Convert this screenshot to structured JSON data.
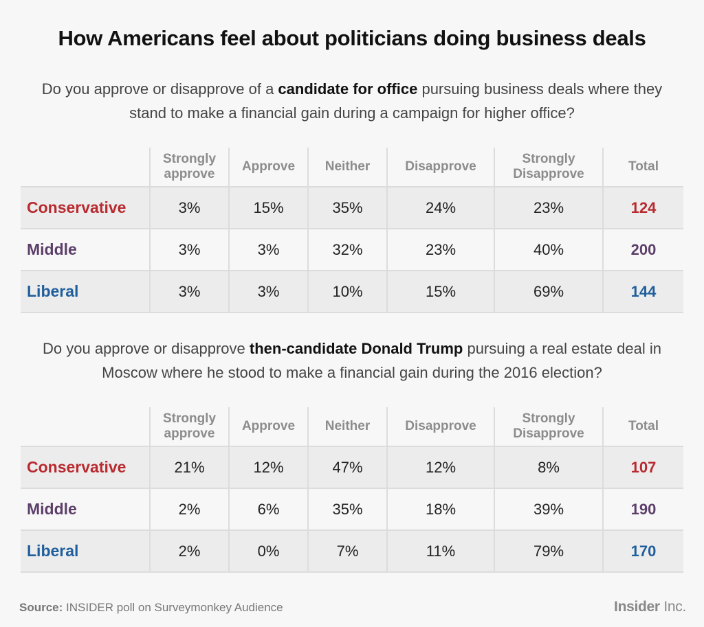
{
  "title": "How Americans feel about politicians doing business deals",
  "columns": [
    "",
    "Strongly approve",
    "Approve",
    "Neither",
    "Disapprove",
    "Strongly Disapprove",
    "Total"
  ],
  "colors": {
    "conservative": "#b82a2f",
    "middle": "#5c3f69",
    "liberal": "#1f5e9c"
  },
  "chart_data": [
    {
      "type": "table",
      "question": {
        "before": "Do you approve or disapprove of a ",
        "bold": "candidate for office",
        "after": " pursuing business deals where they stand to make a financial gain during a campaign for higher office?"
      },
      "columns": [
        "Strongly approve",
        "Approve",
        "Neither",
        "Disapprove",
        "Strongly Disapprove",
        "Total"
      ],
      "rows": [
        {
          "label": "Conservative",
          "key": "cons",
          "values": [
            "3%",
            "15%",
            "35%",
            "24%",
            "23%"
          ],
          "total": "124"
        },
        {
          "label": "Middle",
          "key": "mid",
          "values": [
            "3%",
            "3%",
            "32%",
            "23%",
            "40%"
          ],
          "total": "200"
        },
        {
          "label": "Liberal",
          "key": "lib",
          "values": [
            "3%",
            "3%",
            "10%",
            "15%",
            "69%"
          ],
          "total": "144"
        }
      ]
    },
    {
      "type": "table",
      "question": {
        "before": "Do you approve or disapprove ",
        "bold": "then-candidate Donald Trump",
        "after": " pursuing a real estate deal in Moscow where he stood to make a financial gain during the 2016 election?"
      },
      "columns": [
        "Strongly approve",
        "Approve",
        "Neither",
        "Disapprove",
        "Strongly Disapprove",
        "Total"
      ],
      "rows": [
        {
          "label": "Conservative",
          "key": "cons",
          "values": [
            "21%",
            "12%",
            "47%",
            "12%",
            "8%"
          ],
          "total": "107"
        },
        {
          "label": "Middle",
          "key": "mid",
          "values": [
            "2%",
            "6%",
            "35%",
            "18%",
            "39%"
          ],
          "total": "190"
        },
        {
          "label": "Liberal",
          "key": "lib",
          "values": [
            "2%",
            "0%",
            "7%",
            "11%",
            "79%"
          ],
          "total": "170"
        }
      ]
    }
  ],
  "source": {
    "label": "Source:",
    "text": " INSIDER poll on Surveymonkey Audience"
  },
  "logo": {
    "bold": "Insider",
    "light": " Inc."
  }
}
